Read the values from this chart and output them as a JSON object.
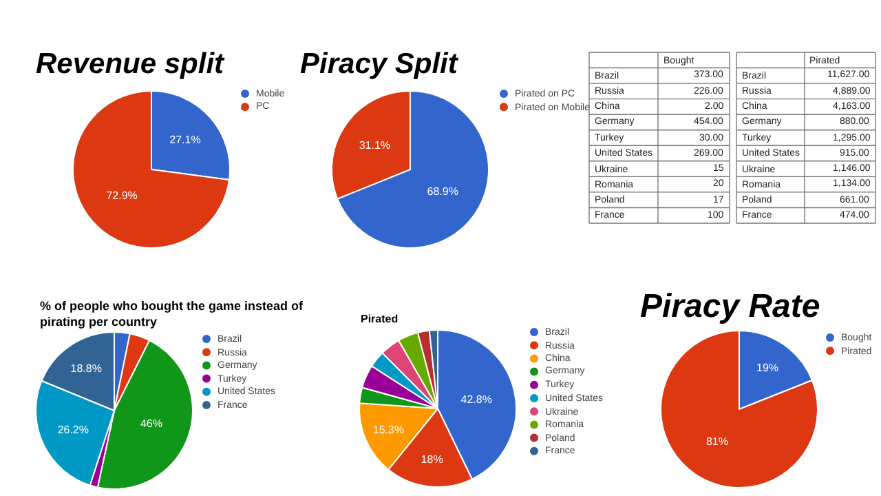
{
  "chart_data": [
    {
      "type": "pie",
      "title": "Revenue split",
      "categories": [
        "Mobile",
        "PC"
      ],
      "values": [
        27.1,
        72.9
      ],
      "colors": [
        "#3366cc",
        "#dc3912"
      ],
      "value_labels": [
        "27.1%",
        "72.9%"
      ],
      "legend": "right"
    },
    {
      "type": "pie",
      "title": "Piracy Split",
      "categories": [
        "Pirated on PC",
        "Pirated on Mobile"
      ],
      "values": [
        68.9,
        31.1
      ],
      "colors": [
        "#3366cc",
        "#dc3912"
      ],
      "value_labels": [
        "68.9%",
        "31.1%"
      ],
      "legend": "right"
    },
    {
      "type": "other",
      "categories": [
        "Brazil",
        "Russia",
        "China",
        "Germany",
        "Turkey",
        "United States",
        "Ukraine",
        "Romania",
        "Poland",
        "France"
      ],
      "series": [
        {
          "name": "Bought",
          "values": [
            373,
            226,
            2,
            454,
            30,
            269,
            15,
            20,
            17,
            100
          ],
          "value_labels": [
            "373.00",
            "226.00",
            "2.00",
            "454.00",
            "30.00",
            "269.00",
            "15",
            "20",
            "17",
            "100"
          ]
        }
      ]
    },
    {
      "type": "other",
      "categories": [
        "Brazil",
        "Russia",
        "China",
        "Germany",
        "Turkey",
        "United States",
        "Ukraine",
        "Romania",
        "Poland",
        "France"
      ],
      "series": [
        {
          "name": "Pirated",
          "values": [
            11627,
            4889,
            4163,
            880,
            1295,
            915,
            1146,
            1134,
            661,
            474
          ],
          "value_labels": [
            "11,627.00",
            "4,889.00",
            "4,163.00",
            "880.00",
            "1,295.00",
            "915.00",
            "1,146.00",
            "1,134.00",
            "661.00",
            "474.00"
          ]
        }
      ]
    },
    {
      "type": "pie",
      "title": "% of people who bought the game instead of pirating per country",
      "categories": [
        "Brazil",
        "Russia",
        "Germany",
        "Turkey",
        "United States",
        "France"
      ],
      "values": [
        3.2,
        4.2,
        46,
        1.6,
        26.2,
        18.8
      ],
      "colors": [
        "#3366cc",
        "#dc3912",
        "#109618",
        "#990099",
        "#0099c6",
        "#316395"
      ],
      "value_labels": [
        null,
        null,
        "46%",
        null,
        "26.2%",
        "18.8%"
      ],
      "legend": "right"
    },
    {
      "type": "pie",
      "title": "Pirated",
      "categories": [
        "Brazil",
        "Russia",
        "China",
        "Germany",
        "Turkey",
        "United States",
        "Ukraine",
        "Romania",
        "Poland",
        "France"
      ],
      "values": [
        42.8,
        18.0,
        15.3,
        3.2,
        4.8,
        3.4,
        4.2,
        4.2,
        2.4,
        1.7
      ],
      "colors": [
        "#3366cc",
        "#dc3912",
        "#ff9900",
        "#109618",
        "#990099",
        "#0099c6",
        "#dd4477",
        "#66aa00",
        "#b82e2e",
        "#316395"
      ],
      "value_labels": [
        "42.8%",
        "18%",
        "15.3%",
        null,
        null,
        null,
        null,
        null,
        null,
        null
      ],
      "legend": "right"
    },
    {
      "type": "pie",
      "title": "Piracy Rate",
      "categories": [
        "Bought",
        "Pirated"
      ],
      "values": [
        19,
        81
      ],
      "colors": [
        "#3366cc",
        "#dc3912"
      ],
      "value_labels": [
        "19%",
        "81%"
      ],
      "legend": "right"
    }
  ]
}
